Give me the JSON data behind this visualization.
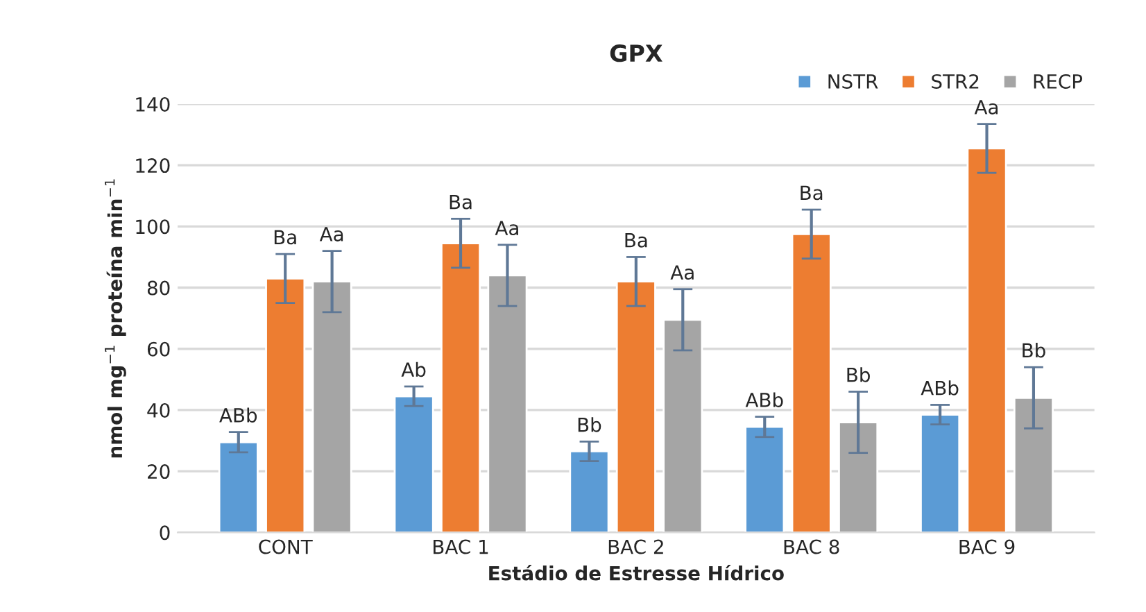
{
  "chart_data": {
    "type": "bar",
    "title": "GPX",
    "xlabel": "Estádio de Estresse Hídrico",
    "ylabel": "nmol mg$^{−1}$ proteína min$^{−1}$",
    "categories": [
      "CONT",
      "BAC 1",
      "BAC 2",
      "BAC 8",
      "BAC 9"
    ],
    "series": [
      {
        "name": "NSTR",
        "color": "#5b9bd5",
        "values": [
          29.5,
          44.5,
          26.5,
          34.5,
          38.5
        ],
        "errors": [
          3.3,
          3.2,
          3.2,
          3.3,
          3.2
        ],
        "value_labels": [
          "ABb",
          "Ab",
          "Bb",
          "ABb",
          "ABb"
        ]
      },
      {
        "name": "STR2",
        "color": "#ed7d31",
        "values": [
          83,
          94.5,
          82,
          97.5,
          125.5
        ],
        "errors": [
          8,
          8,
          8,
          8,
          8
        ],
        "value_labels": [
          "Ba",
          "Ba",
          "Ba",
          "Ba",
          "Aa"
        ]
      },
      {
        "name": "RECP",
        "color": "#a5a5a5",
        "values": [
          82,
          84,
          69.5,
          36,
          44
        ],
        "errors": [
          10,
          10,
          10,
          10,
          10
        ],
        "value_labels": [
          "Aa",
          "Aa",
          "Aa",
          "Bb",
          "Bb"
        ]
      }
    ],
    "ylim": [
      0,
      140
    ],
    "yticks": [
      0,
      20,
      40,
      60,
      80,
      100,
      120,
      140
    ],
    "grid": "y",
    "legend": "top right"
  }
}
